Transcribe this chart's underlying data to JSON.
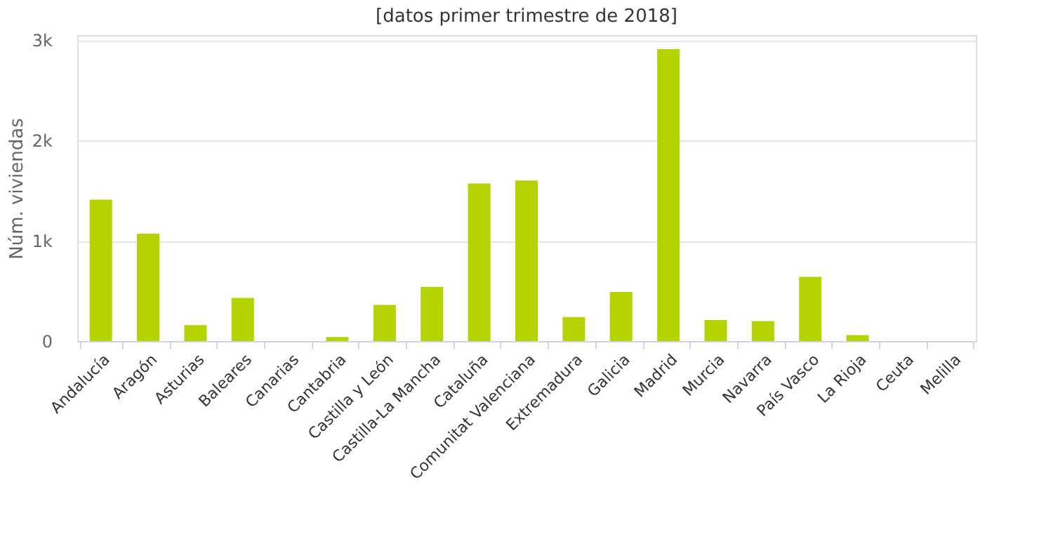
{
  "chart_data": {
    "type": "bar",
    "title": "[datos primer trimestre de 2018]",
    "ylabel": "Núm. viviendas",
    "categories": [
      "Andalucía",
      "Aragón",
      "Asturias",
      "Baleares",
      "Canarias",
      "Cantabria",
      "Castilla y León",
      "Castilla-La Mancha",
      "Cataluña",
      "Comunitat Valenciana",
      "Extremadura",
      "Galicia",
      "Madrid",
      "Murcia",
      "Navarra",
      "País Vasco",
      "La Rioja",
      "Ceuta",
      "Melilla"
    ],
    "values": [
      1410,
      1070,
      160,
      430,
      0,
      40,
      360,
      540,
      1570,
      1600,
      240,
      490,
      2910,
      210,
      200,
      640,
      60,
      0,
      0
    ],
    "color": "#b5d300",
    "ylim": [
      0,
      3050
    ],
    "yticks": [
      0,
      {
        "value": 1000,
        "label": "1k"
      },
      {
        "value": 2000,
        "label": "2k"
      },
      {
        "value": 3000,
        "label": "3k"
      }
    ],
    "grid": "y"
  }
}
